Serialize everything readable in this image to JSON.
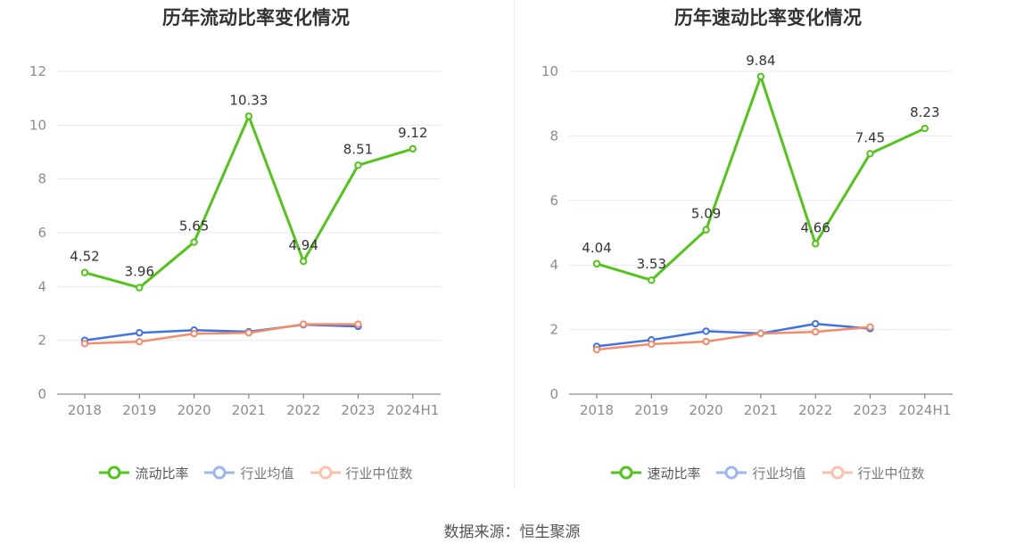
{
  "source_text": "数据来源：恒生聚源",
  "colors": {
    "primary": "#52c41a",
    "industry_avg": "#3e73e4",
    "industry_median": "#f58b67"
  },
  "chart_data": [
    {
      "type": "line",
      "title": "历年流动比率变化情况",
      "categories": [
        "2018",
        "2019",
        "2020",
        "2021",
        "2022",
        "2023",
        "2024H1"
      ],
      "ylim": [
        0,
        12
      ],
      "yticks": [
        "0",
        "2",
        "4",
        "6",
        "8",
        "10",
        "12"
      ],
      "grid": true,
      "legend_position": "bottom-center",
      "series": [
        {
          "name": "流动比率",
          "color": "#52c41a",
          "values": [
            4.52,
            3.96,
            5.65,
            10.33,
            4.94,
            8.51,
            9.12
          ],
          "labels": [
            "4.52",
            "3.96",
            "5.65",
            "10.33",
            "4.94",
            "8.51",
            "9.12"
          ]
        },
        {
          "name": "行业均值",
          "color": "#3e73e4",
          "values": [
            2.0,
            2.28,
            2.38,
            2.32,
            2.58,
            2.52,
            null
          ]
        },
        {
          "name": "行业中位数",
          "color": "#f58b67",
          "values": [
            1.88,
            1.95,
            2.25,
            2.28,
            2.6,
            2.6,
            null
          ]
        }
      ]
    },
    {
      "type": "line",
      "title": "历年速动比率变化情况",
      "categories": [
        "2018",
        "2019",
        "2020",
        "2021",
        "2022",
        "2023",
        "2024H1"
      ],
      "ylim": [
        0,
        10
      ],
      "yticks": [
        "0",
        "2",
        "4",
        "6",
        "8",
        "10"
      ],
      "grid": true,
      "legend_position": "bottom-center",
      "series": [
        {
          "name": "速动比率",
          "color": "#52c41a",
          "values": [
            4.04,
            3.53,
            5.09,
            9.84,
            4.66,
            7.45,
            8.23
          ],
          "labels": [
            "4.04",
            "3.53",
            "5.09",
            "9.84",
            "4.66",
            "7.45",
            "8.23"
          ]
        },
        {
          "name": "行业均值",
          "color": "#3e73e4",
          "values": [
            1.48,
            1.68,
            1.95,
            1.88,
            2.18,
            2.03,
            null
          ]
        },
        {
          "name": "行业中位数",
          "color": "#f58b67",
          "values": [
            1.38,
            1.55,
            1.63,
            1.88,
            1.93,
            2.08,
            null
          ]
        }
      ]
    }
  ]
}
